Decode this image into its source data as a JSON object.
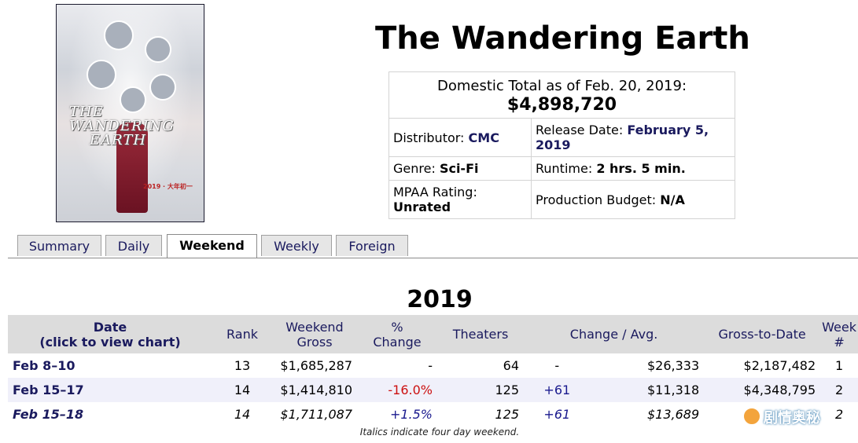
{
  "movie": {
    "title": "The Wandering Earth",
    "poster_logo_line1": "THE WANDERING",
    "poster_logo_line2": "EARTH",
    "poster_date": "2019 · 大年初一"
  },
  "summary_box": {
    "total_label": "Domestic Total as of Feb. 20, 2019:",
    "total_value": "$4,898,720",
    "rows": [
      [
        {
          "label": "Distributor: ",
          "value": "CMC"
        },
        {
          "label": "Release Date: ",
          "value": "February 5, 2019"
        }
      ],
      [
        {
          "label": "Genre: ",
          "value": "Sci-Fi"
        },
        {
          "label": "Runtime: ",
          "value": "2 hrs. 5 min."
        }
      ],
      [
        {
          "label": "MPAA Rating: ",
          "value": "Unrated"
        },
        {
          "label": "Production Budget: ",
          "value": "N/A"
        }
      ]
    ]
  },
  "tabs": [
    {
      "label": "Summary",
      "active": false
    },
    {
      "label": "Daily",
      "active": false
    },
    {
      "label": "Weekend",
      "active": true
    },
    {
      "label": "Weekly",
      "active": false
    },
    {
      "label": "Foreign",
      "active": false
    }
  ],
  "table": {
    "year": "2019",
    "headers": {
      "date_line1": "Date",
      "date_line2": "(click to view chart)",
      "rank": "Rank",
      "gross_line1": "Weekend",
      "gross_line2": "Gross",
      "pct_line1": "%",
      "pct_line2": "Change",
      "theaters": "Theaters",
      "change_avg": "Change / Avg.",
      "gross_to_date": "Gross-to-Date",
      "week_line1": "Week",
      "week_line2": "#"
    },
    "rows": [
      {
        "date": "Feb 8–10",
        "rank": "13",
        "gross": "$1,685,287",
        "pct": "-",
        "pct_color": "",
        "theaters": "64",
        "change": "-",
        "avg": "$26,333",
        "to_date": "$2,187,482",
        "week": "1",
        "italic": false
      },
      {
        "date": "Feb 15–17",
        "rank": "14",
        "gross": "$1,414,810",
        "pct": "-16.0%",
        "pct_color": "#cc1111",
        "theaters": "125",
        "change": "+61",
        "avg": "$11,318",
        "to_date": "$4,348,795",
        "week": "2",
        "italic": false
      },
      {
        "date": "Feb 15–18",
        "rank": "14",
        "gross": "$1,711,087",
        "pct": "+1.5%",
        "pct_color": "#1a1a8e",
        "theaters": "125",
        "change": "+61",
        "avg": "$13,689",
        "to_date": "",
        "week": "2",
        "italic": true
      }
    ],
    "footnote": "Italics indicate four day weekend."
  },
  "watermark": "剧情奥秘",
  "colors": {
    "accent": "#1a1a5e",
    "negative": "#cc1111",
    "header_bg": "#dcdcdc"
  }
}
